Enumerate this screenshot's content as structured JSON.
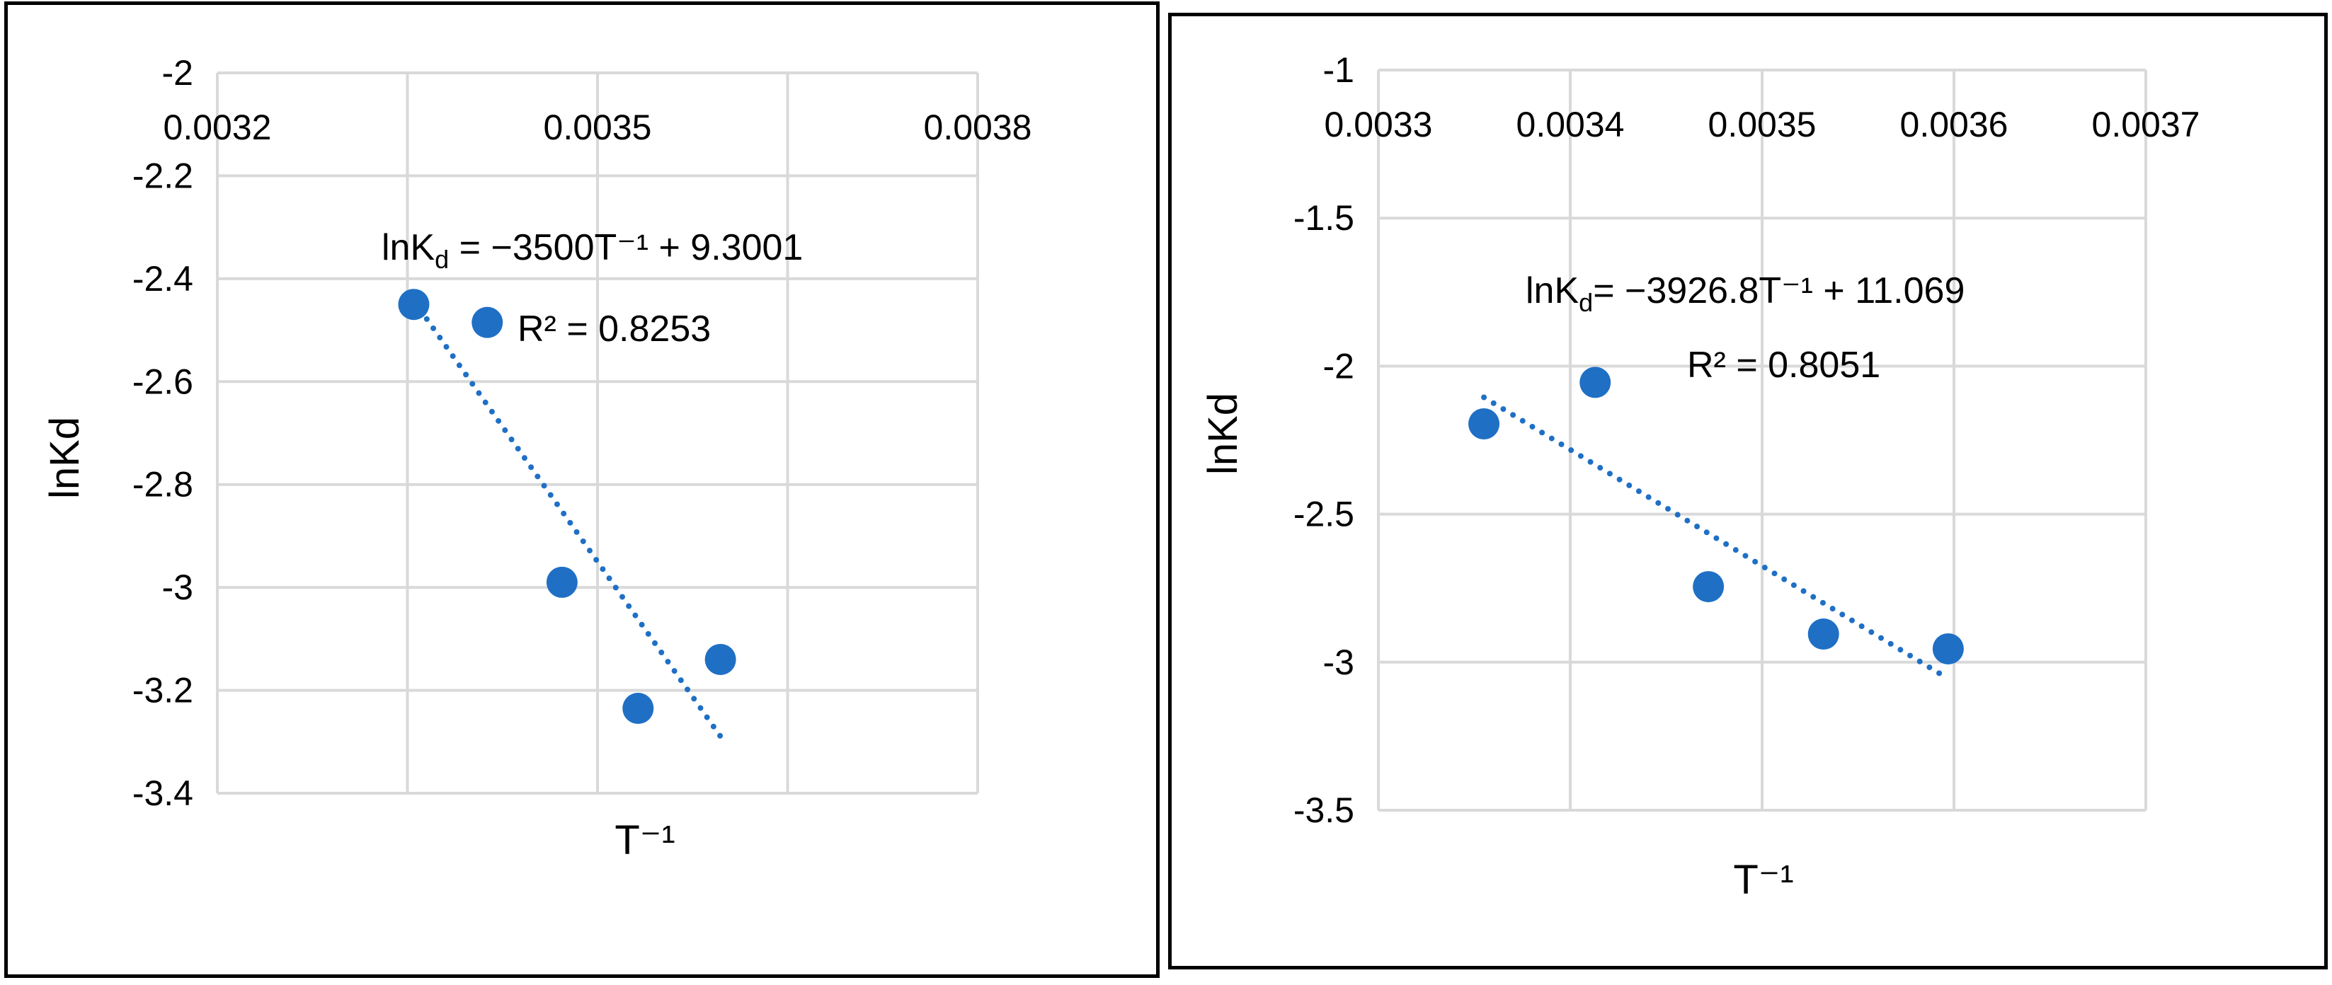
{
  "chart_data": [
    {
      "type": "scatter",
      "title": "",
      "xlabel": "T⁻¹",
      "ylabel": "lnKd",
      "xlim": [
        0.0032,
        0.0038
      ],
      "ylim": [
        -3.4,
        -2
      ],
      "x_ticks": [
        "0.0032",
        "0.0035",
        "0.0038"
      ],
      "y_ticks": [
        "-2",
        "-2.2",
        "-2.4",
        "-2.6",
        "-2.8",
        "-3",
        "-3.2",
        "-3.4"
      ],
      "grid": true,
      "x_axis_position": "top",
      "marker_color": "#1f6fc5",
      "points": [
        {
          "x": 0.003355,
          "y": -2.45
        },
        {
          "x": 0.003413,
          "y": -2.485
        },
        {
          "x": 0.003472,
          "y": -2.99
        },
        {
          "x": 0.003532,
          "y": -3.235
        },
        {
          "x": 0.003597,
          "y": -3.14
        }
      ],
      "trendline": {
        "style": "dotted",
        "x_start": 0.003355,
        "x_end": 0.003597,
        "slope": -3500,
        "intercept": 9.3001
      },
      "equation_main": "lnK",
      "equation_sub": "d",
      "equation_rest": " = −3500T⁻¹ + 9.3001",
      "r_squared": "R² = 0.8253"
    },
    {
      "type": "scatter",
      "title": "",
      "xlabel": "T⁻¹",
      "ylabel": "lnKd",
      "xlim": [
        0.0033,
        0.0037
      ],
      "ylim": [
        -3.5,
        -1
      ],
      "x_ticks": [
        "0.0033",
        "0.0034",
        "0.0035",
        "0.0036",
        "0.0037"
      ],
      "y_ticks": [
        "-1",
        "-1.5",
        "-2",
        "-2.5",
        "-3",
        "-3.5"
      ],
      "grid": true,
      "x_axis_position": "top",
      "marker_color": "#1f6fc5",
      "points": [
        {
          "x": 0.003355,
          "y": -2.195
        },
        {
          "x": 0.003413,
          "y": -2.055
        },
        {
          "x": 0.003472,
          "y": -2.745
        },
        {
          "x": 0.003532,
          "y": -2.905
        },
        {
          "x": 0.003597,
          "y": -2.955
        }
      ],
      "trendline": {
        "style": "dotted",
        "x_start": 0.003355,
        "x_end": 0.003597,
        "slope": -3926.8,
        "intercept": 11.069
      },
      "equation_main": "lnK",
      "equation_sub": "d",
      "equation_rest": "= −3926.8T⁻¹ + 11.069",
      "r_squared": "R² = 0.8051"
    }
  ]
}
